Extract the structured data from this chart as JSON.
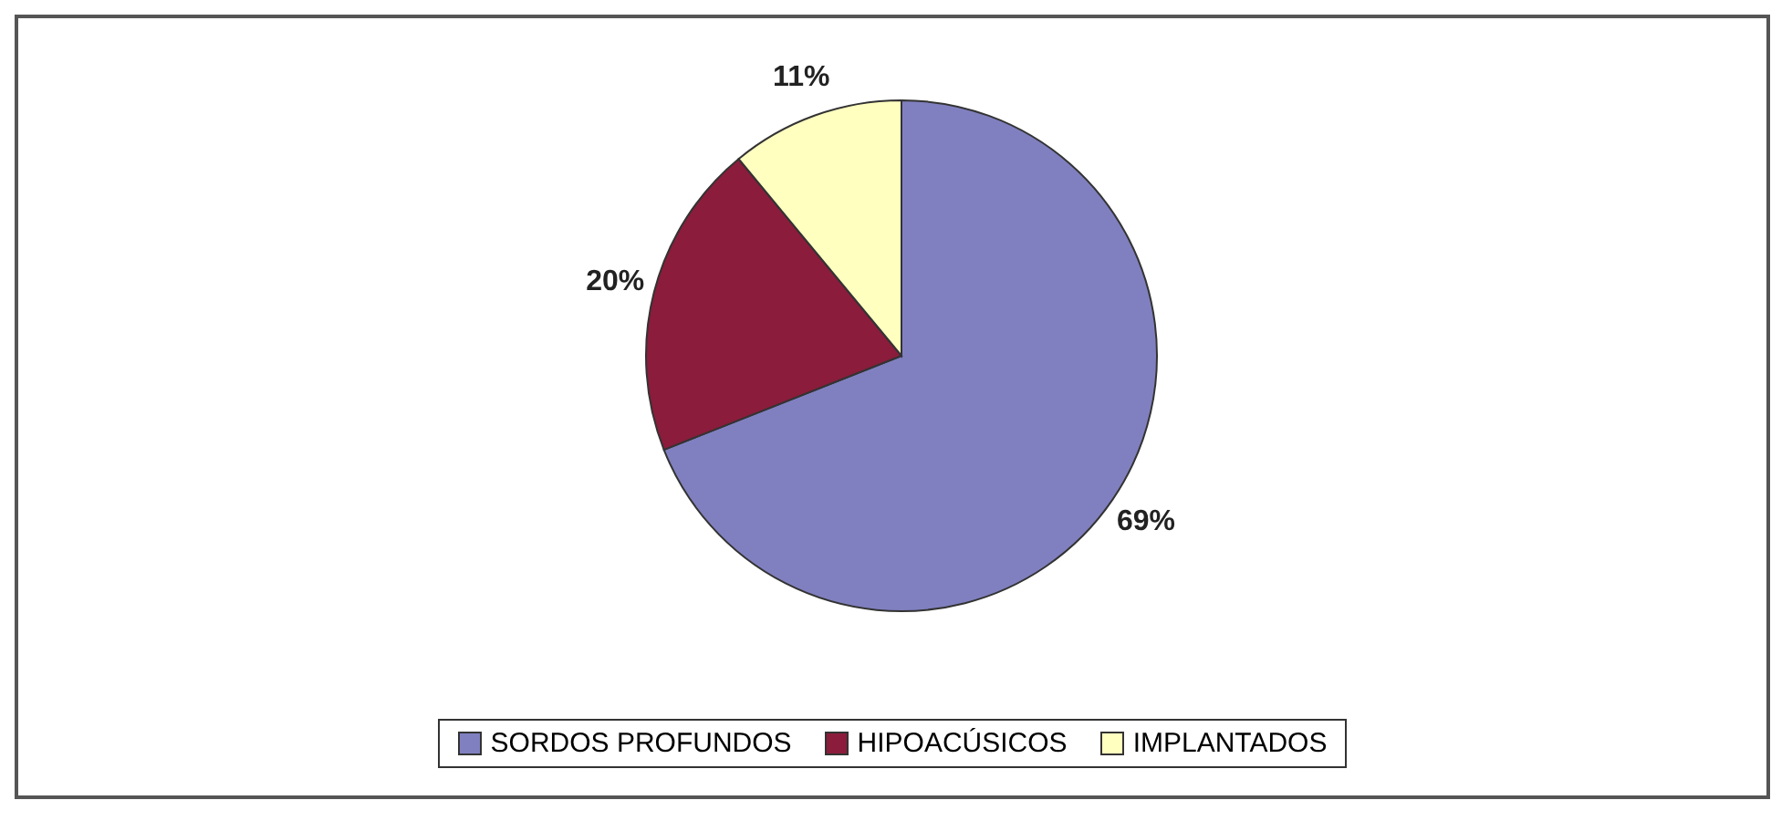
{
  "chart_data": {
    "type": "pie",
    "categories": [
      "SORDOS PROFUNDOS",
      "HIPOACÚSICOS",
      "IMPLANTADOS"
    ],
    "values": [
      69,
      20,
      11
    ],
    "colors": [
      "#8080c0",
      "#8b1c3c",
      "#ffffc0"
    ],
    "value_labels": [
      "69%",
      "20%",
      "11%"
    ],
    "legend": "bottom"
  }
}
